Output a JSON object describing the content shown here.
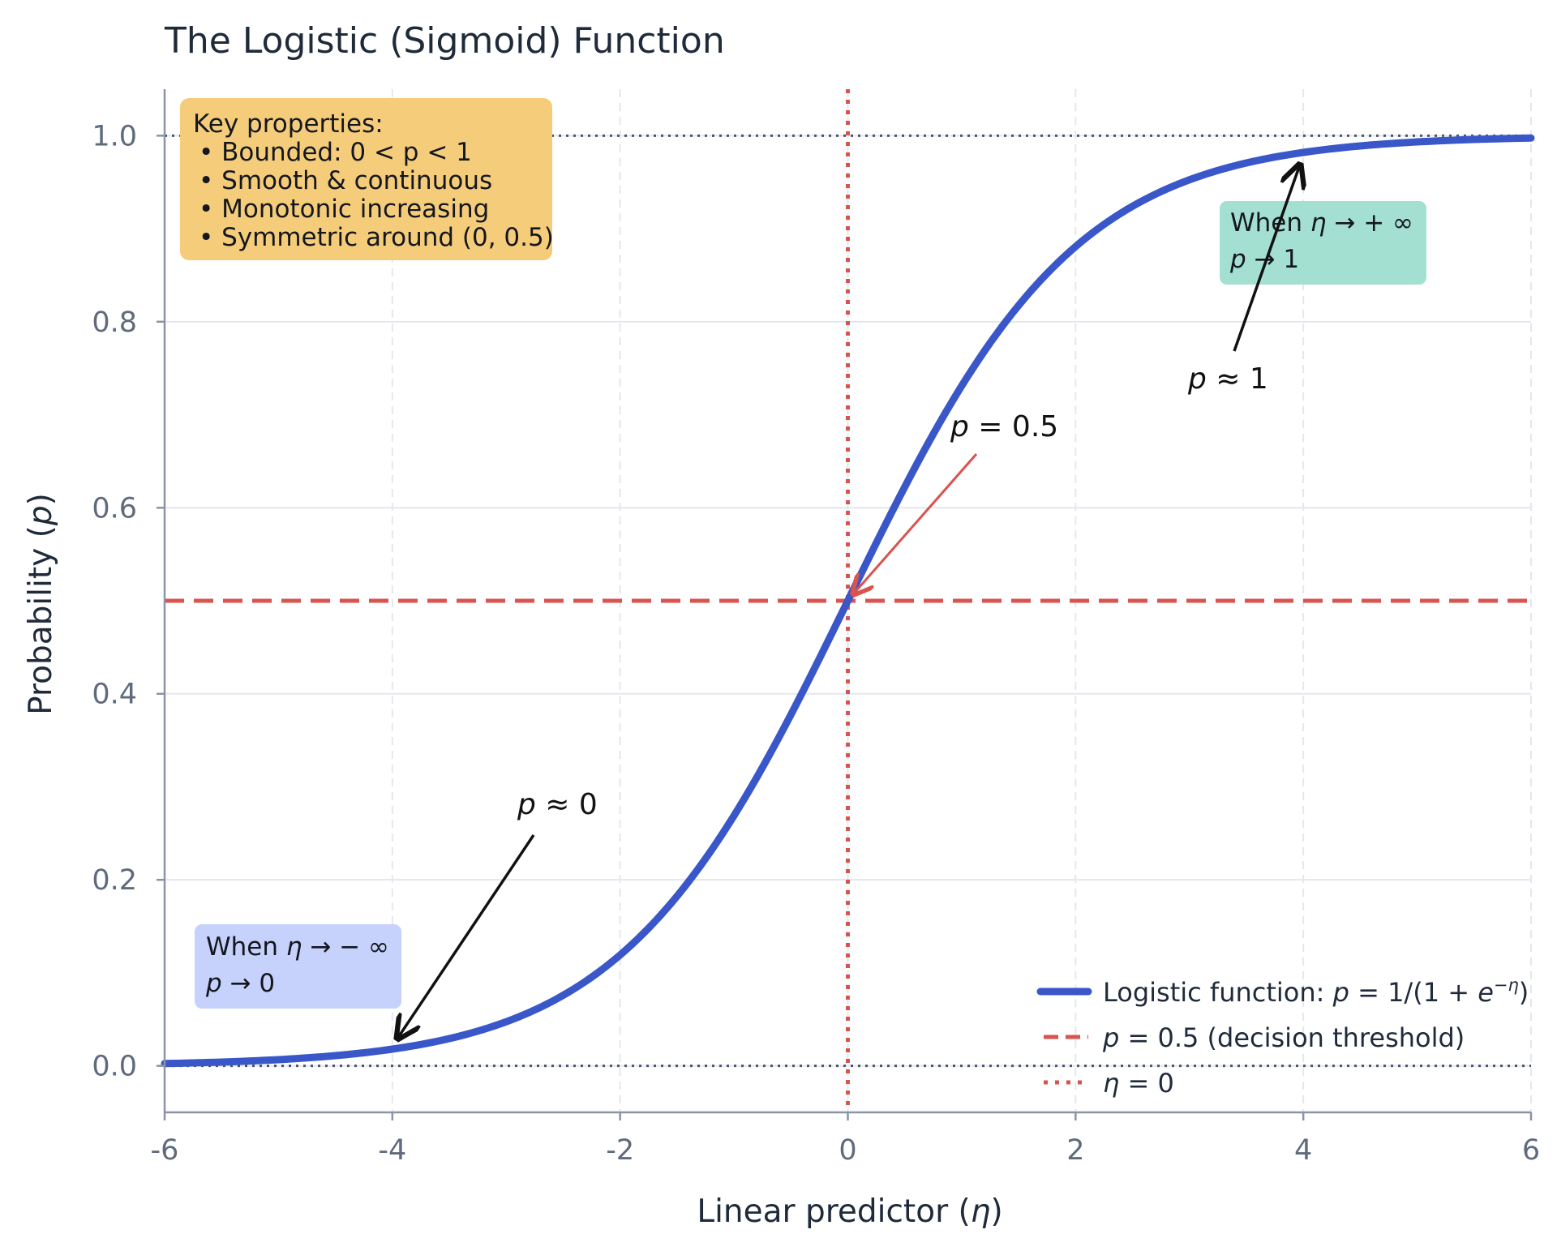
{
  "chart_data": {
    "type": "line",
    "title": "The Logistic (Sigmoid) Function",
    "xlabel": "Linear predictor (η)",
    "ylabel": "Probability (p)",
    "xlim": [
      -6,
      6
    ],
    "ylim": [
      -0.05,
      1.05
    ],
    "xticks": [
      -6,
      -4,
      -2,
      0,
      2,
      4,
      6
    ],
    "xtick_labels": [
      "-6",
      "-4",
      "-2",
      "0",
      "2",
      "4",
      "6"
    ],
    "yticks": [
      0.0,
      0.2,
      0.4,
      0.6,
      0.8,
      1.0
    ],
    "ytick_labels": [
      "0.0",
      "0.2",
      "0.4",
      "0.6",
      "0.8",
      "1.0"
    ],
    "grid": true,
    "legend_position": "bottom-right",
    "series": [
      {
        "name": "Logistic function: p = 1/(1 + e^{-η})",
        "function": "1/(1+exp(-x))",
        "x": [
          -6,
          -5,
          -4,
          -3,
          -2,
          -1,
          0,
          1,
          2,
          3,
          4,
          5,
          6
        ],
        "y": [
          0.0025,
          0.0067,
          0.018,
          0.047,
          0.119,
          0.269,
          0.5,
          0.731,
          0.881,
          0.953,
          0.982,
          0.9933,
          0.9975
        ],
        "color": "#3a57c9"
      }
    ],
    "reference_lines": [
      {
        "orientation": "horizontal",
        "y": 0.5,
        "style": "dashed",
        "color": "#d9534f",
        "legend": "p = 0.5 (decision threshold)"
      },
      {
        "orientation": "vertical",
        "x": 0,
        "style": "dotted",
        "color": "#d9534f",
        "legend": "η = 0"
      },
      {
        "orientation": "horizontal",
        "y": 1.0,
        "style": "dotted",
        "color": "#4b5566"
      },
      {
        "orientation": "horizontal",
        "y": 0.0,
        "style": "dotted",
        "color": "#4b5566"
      }
    ],
    "annotations": [
      {
        "text": "p = 0.5",
        "points_to": [
          0,
          0.5
        ],
        "color": "#d9534f"
      },
      {
        "text": "p ≈ 1",
        "points_to": [
          4,
          0.982
        ],
        "color": "#111111"
      },
      {
        "text": "p ≈ 0",
        "points_to": [
          -4,
          0.018
        ],
        "color": "#111111"
      }
    ],
    "info_boxes": [
      {
        "lines": [
          "Key properties:",
          "•  Bounded: 0 < p < 1",
          "•  Smooth & continuous",
          "•  Monotonic increasing",
          "•  Symmetric around (0, 0.5)"
        ],
        "color": "#f5cd7a"
      },
      {
        "lines": [
          "When η → + ∞",
          "p → 1"
        ],
        "color": "#a3e0d2"
      },
      {
        "lines": [
          "When η → − ∞",
          "p → 0"
        ],
        "color": "#c6d2fb"
      }
    ],
    "legend": [
      "Logistic function: p = 1/(1 + e^{-η})",
      "p = 0.5 (decision threshold)",
      "η = 0"
    ]
  },
  "text": {
    "title": "The Logistic (Sigmoid) Function",
    "xlabel_main": "Linear predictor (",
    "xlabel_sym": "η",
    "xlabel_close": ")",
    "ylabel_main": "Probability (",
    "ylabel_sym": "p",
    "ylabel_close": ")",
    "ann_mid_p": "p",
    "ann_mid_rest": " = 0.5",
    "ann_one_p": "p",
    "ann_one_rest": " ≈ 1",
    "ann_zero_p": "p",
    "ann_zero_rest": " ≈ 0",
    "key_title": "Key properties:",
    "key_1": "•  Bounded: 0 < p < 1",
    "key_2": "•  Smooth & continuous",
    "key_3": "•  Monotonic increasing",
    "key_4": "•  Symmetric around (0, 0.5)",
    "pos_when": "When ",
    "pos_eta": "η",
    "pos_arrow": " → + ∞",
    "pos_p": "p",
    "pos_res": " → 1",
    "neg_when": "When ",
    "neg_eta": "η",
    "neg_arrow": " → − ∞",
    "neg_p": "p",
    "neg_res": " → 0",
    "leg1_text": "Logistic function: ",
    "leg1_p": "p",
    "leg1_eq": " = 1/(1 + ",
    "leg1_e": "e",
    "leg1_sup": "−η",
    "leg1_close": ")",
    "leg2_p": "p",
    "leg2_rest": " = 0.5 (decision threshold)",
    "leg3_eta": "η",
    "leg3_rest": " = 0"
  }
}
